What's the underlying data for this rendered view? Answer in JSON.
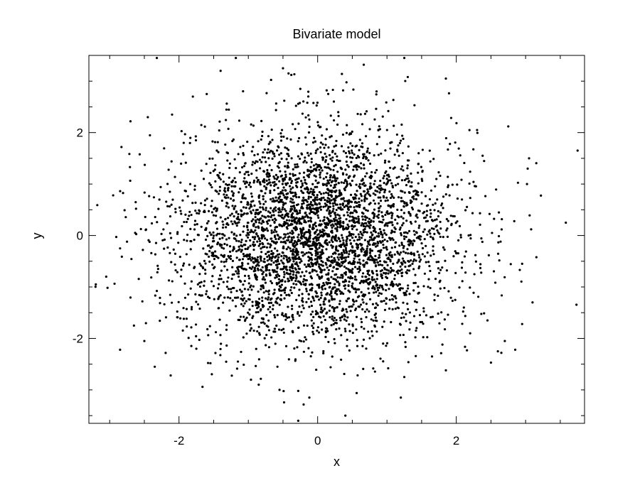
{
  "chart_data": {
    "type": "scatter",
    "title": "Bivariate model",
    "xlabel": "x",
    "ylabel": "y",
    "xlim": [
      -3.3,
      3.85
    ],
    "ylim": [
      -3.65,
      3.5
    ],
    "xticks": [
      -2,
      0,
      2
    ],
    "yticks": [
      -2,
      0,
      2
    ],
    "x_tick_labels": [
      "-2",
      "0",
      "2"
    ],
    "y_tick_labels": [
      "-2",
      "0",
      "2"
    ],
    "minor_tick_step": 0.5,
    "grid": false,
    "marker_color": "#000000",
    "series": [
      {
        "distribution": "bivariate normal",
        "n_points": 4000,
        "mean": [
          0.0,
          0.0
        ],
        "std": [
          1.0,
          1.0
        ],
        "points": [
          [
            -0.5,
            3.25
          ],
          [
            -0.42,
            3.15
          ],
          [
            -0.38,
            3.12
          ],
          [
            0.35,
            3.14
          ],
          [
            0.13,
            2.82
          ],
          [
            0.22,
            2.83
          ],
          [
            -0.25,
            2.85
          ],
          [
            1.3,
            3.08
          ],
          [
            1.85,
            3.05
          ],
          [
            0.85,
            2.8
          ],
          [
            -1.4,
            3.2
          ],
          [
            -1.18,
            3.45
          ],
          [
            -2.32,
            3.45
          ],
          [
            1.25,
            3.45
          ],
          [
            -2.83,
            1.72
          ],
          [
            -2.7,
            2.22
          ],
          [
            -2.45,
            2.3
          ],
          [
            -2.1,
            2.35
          ],
          [
            -1.8,
            2.7
          ],
          [
            -1.6,
            2.75
          ],
          [
            2.75,
            2.12
          ],
          [
            2.3,
            2.05
          ],
          [
            3.05,
            1.5
          ],
          [
            3.03,
            1.3
          ],
          [
            3.02,
            1.0
          ],
          [
            3.75,
            1.65
          ],
          [
            3.95,
            0.2
          ],
          [
            3.58,
            0.25
          ],
          [
            3.08,
            0.12
          ],
          [
            2.95,
            -0.55
          ],
          [
            3.1,
            -1.3
          ],
          [
            2.95,
            -1.72
          ],
          [
            2.7,
            -2.05
          ],
          [
            2.85,
            -2.22
          ],
          [
            2.65,
            -2.28
          ],
          [
            2.6,
            -2.25
          ],
          [
            2.5,
            -2.47
          ],
          [
            1.85,
            -2.62
          ],
          [
            1.8,
            -2.12
          ],
          [
            1.25,
            -2.75
          ],
          [
            1.2,
            -3.15
          ],
          [
            0.4,
            -3.5
          ],
          [
            -0.12,
            -3.15
          ],
          [
            -0.28,
            -3.02
          ],
          [
            -0.28,
            -3.6
          ],
          [
            -0.55,
            -3.0
          ],
          [
            -0.85,
            -2.9
          ],
          [
            -0.58,
            -2.55
          ],
          [
            -3.2,
            -0.95
          ],
          [
            -3.05,
            -0.8
          ],
          [
            -2.85,
            -2.22
          ],
          [
            -2.65,
            -1.75
          ],
          [
            -2.35,
            -2.55
          ],
          [
            -2.12,
            -2.72
          ],
          [
            -2.5,
            -2.05
          ],
          [
            -3.32,
            0.2
          ],
          [
            -2.95,
            0.78
          ],
          [
            -2.62,
            0.52
          ],
          [
            -2.85,
            -0.25
          ],
          [
            -2.75,
            -0.12
          ],
          [
            1.65,
            -2.35
          ],
          [
            2.2,
            -1.9
          ],
          [
            2.45,
            -1.65
          ],
          [
            -1.75,
            -2.2
          ],
          [
            -1.15,
            -2.45
          ]
        ]
      }
    ]
  }
}
